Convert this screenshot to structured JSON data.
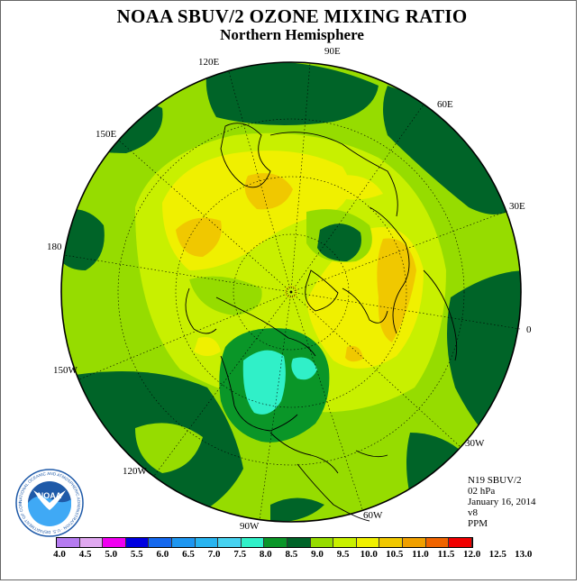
{
  "header": {
    "title": "NOAA SBUV/2 OZONE MIXING RATIO",
    "subtitle": "Northern Hemisphere"
  },
  "longitude_labels": [
    {
      "id": "lon-90e",
      "text": "90E"
    },
    {
      "id": "lon-60e",
      "text": "60E"
    },
    {
      "id": "lon-30e",
      "text": "30E"
    },
    {
      "id": "lon-0",
      "text": "0"
    },
    {
      "id": "lon-30w",
      "text": "30W"
    },
    {
      "id": "lon-60w",
      "text": "60W"
    },
    {
      "id": "lon-90w",
      "text": "90W"
    },
    {
      "id": "lon-120w",
      "text": "120W"
    },
    {
      "id": "lon-150w",
      "text": "150W"
    },
    {
      "id": "lon-180",
      "text": "180"
    },
    {
      "id": "lon-150e",
      "text": "150E"
    },
    {
      "id": "lon-120e",
      "text": "120E"
    }
  ],
  "info": {
    "instrument": "N19 SBUV/2",
    "pressure": "02 hPa",
    "date": "January 16, 2014",
    "version": "v8",
    "units": "PPM"
  },
  "colorbar": {
    "ticks": [
      "4.0",
      "4.5",
      "5.0",
      "5.5",
      "6.0",
      "6.5",
      "7.0",
      "7.5",
      "8.0",
      "8.5",
      "9.0",
      "9.5",
      "10.0",
      "10.5",
      "11.0",
      "11.5",
      "12.0",
      "12.5",
      "13.0"
    ],
    "colors": [
      "#b57bf0",
      "#e0a8f0",
      "#f000f0",
      "#0000e0",
      "#1468ee",
      "#1e96f0",
      "#28b4f0",
      "#46d2f0",
      "#30f0c8",
      "#0a9628",
      "#006428",
      "#96dc00",
      "#c8f000",
      "#f0f000",
      "#f0c800",
      "#f0a000",
      "#f06400",
      "#f00000",
      "#8b5a3c"
    ]
  },
  "logo": {
    "text": "NOAA",
    "ring_text": "NATIONAL OCEANIC AND ATMOSPHERIC ADMINISTRATION · U.S. DEPARTMENT OF COMMERCE"
  },
  "map_colors": {
    "c_8_0": "#30f0c8",
    "c_8_5": "#0a9628",
    "c_9_0": "#006428",
    "c_9_5": "#96dc00",
    "c_10_0": "#c8f000",
    "c_10_5": "#f0f000",
    "c_11_0": "#f0c800",
    "c_11_5": "#f0a000"
  }
}
